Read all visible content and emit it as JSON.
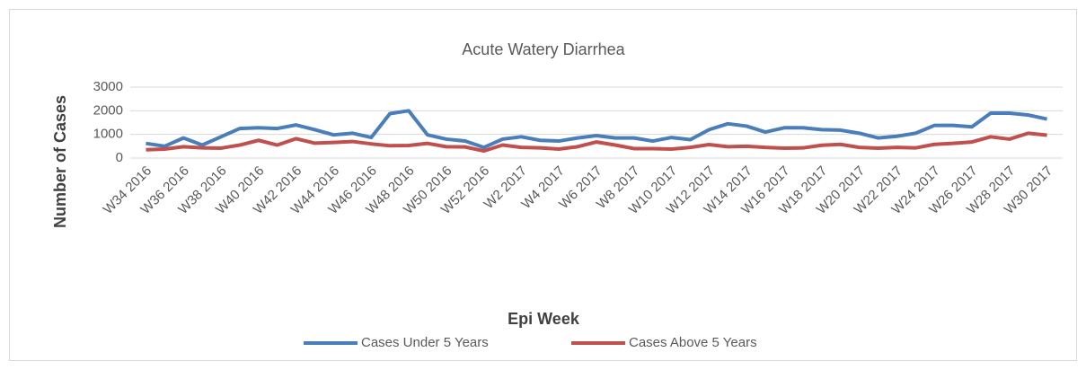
{
  "chart_data": {
    "type": "line",
    "title": "Acute Watery Diarrhea",
    "x_label": "Epi Week",
    "y_label": "Number of Cases",
    "categories": [
      "W34 2016",
      null,
      "W36 2016",
      null,
      "W38 2016",
      null,
      "W40 2016",
      null,
      "W42 2016",
      null,
      "W44 2016",
      null,
      "W46 2016",
      null,
      "W48 2016",
      null,
      "W50 2016",
      null,
      "W52 2016",
      null,
      "W2 2017",
      null,
      "W4 2017",
      null,
      "W6 2017",
      null,
      "W8 2017",
      null,
      "W10 2017",
      null,
      "W12 2017",
      null,
      "W14 2017",
      null,
      "W16 2017",
      null,
      "W18 2017",
      null,
      "W20 2017",
      null,
      "W22 2017",
      null,
      "W24 2017",
      null,
      "W26 2017",
      null,
      "W28 2017",
      null,
      "W30 2017"
    ],
    "series": [
      {
        "name": "Cases Under 5 Years",
        "color": "#4a7ebb",
        "values": [
          620,
          500,
          850,
          550,
          900,
          1250,
          1280,
          1250,
          1400,
          1200,
          980,
          1050,
          870,
          1880,
          2000,
          980,
          800,
          720,
          450,
          800,
          900,
          750,
          720,
          850,
          950,
          850,
          850,
          720,
          870,
          780,
          1200,
          1450,
          1350,
          1100,
          1280,
          1280,
          1200,
          1180,
          1050,
          850,
          920,
          1050,
          1380,
          1380,
          1320,
          1900,
          1900,
          1820,
          1650
        ]
      },
      {
        "name": "Cases Above 5 Years",
        "color": "#c0504d",
        "values": [
          350,
          380,
          480,
          430,
          420,
          550,
          750,
          550,
          820,
          630,
          660,
          700,
          600,
          520,
          530,
          620,
          480,
          470,
          300,
          550,
          450,
          430,
          380,
          480,
          680,
          550,
          400,
          400,
          380,
          450,
          570,
          480,
          500,
          450,
          420,
          430,
          540,
          580,
          450,
          420,
          450,
          430,
          580,
          620,
          680,
          900,
          800,
          1050,
          970
        ]
      }
    ],
    "ylim": [
      0,
      3000
    ],
    "yticks": [
      0,
      1000,
      2000,
      3000
    ],
    "grid": true,
    "legend": "bottom"
  }
}
